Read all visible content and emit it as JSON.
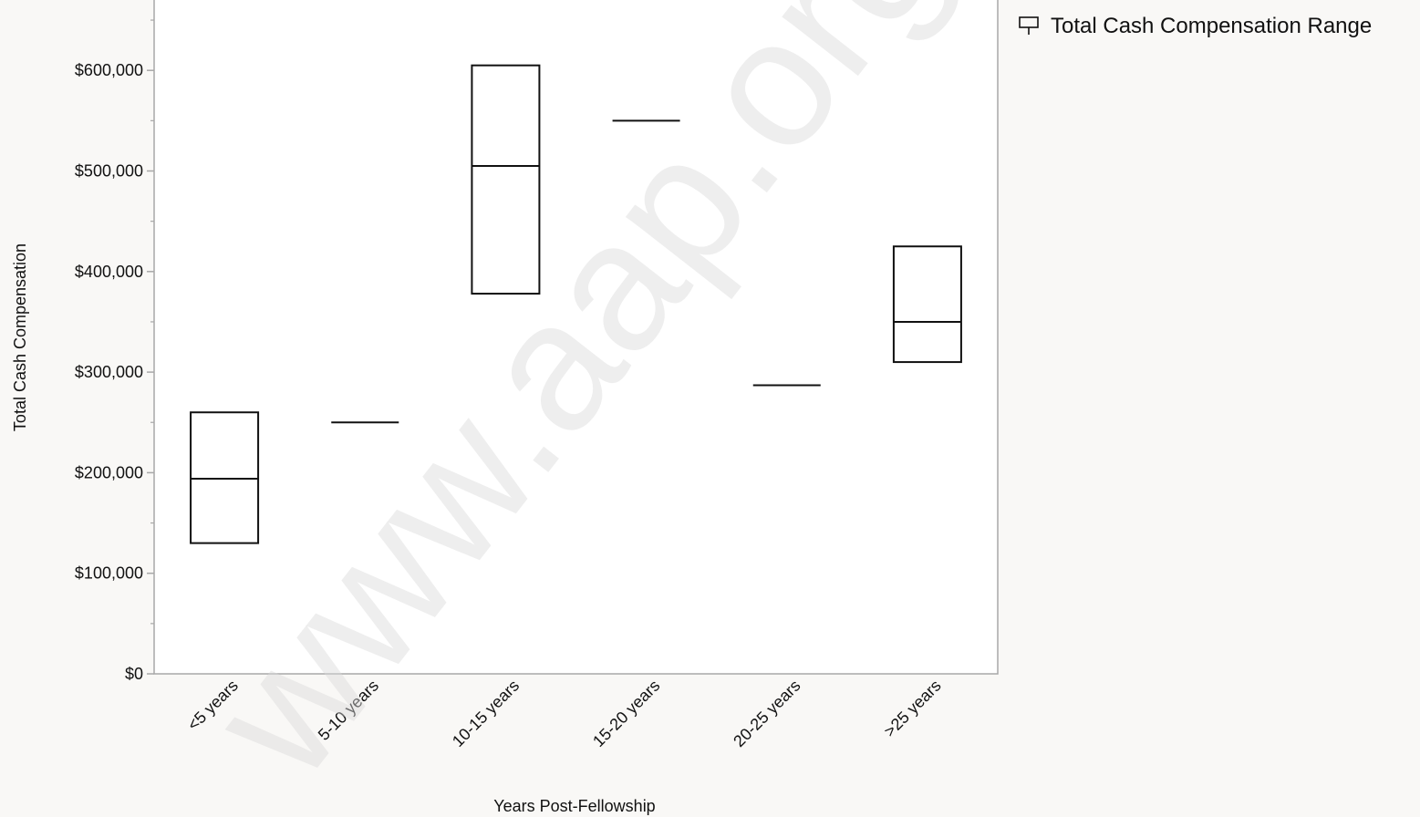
{
  "chart_data": {
    "type": "box-range",
    "xlabel": "Years Post-Fellowship",
    "ylabel": "Total Cash Compensation",
    "categories": [
      "<5 years",
      "5-10 years",
      "10-15 years",
      "15-20 years",
      "20-25 years",
      ">25 years"
    ],
    "series": [
      {
        "name": "Total Cash Compensation Range",
        "ranges": [
          {
            "category": "<5 years",
            "low": 130000,
            "mid": 194000,
            "high": 260000
          },
          {
            "category": "5-10 years",
            "low": 250000,
            "mid": 250000,
            "high": 250000
          },
          {
            "category": "10-15 years",
            "low": 378000,
            "mid": 505000,
            "high": 605000
          },
          {
            "category": "15-20 years",
            "low": 550000,
            "mid": 550000,
            "high": 550000
          },
          {
            "category": "20-25 years",
            "low": 287000,
            "mid": 287000,
            "high": 287000
          },
          {
            "category": ">25 years",
            "low": 310000,
            "mid": 350000,
            "high": 425000
          }
        ]
      }
    ],
    "ylim": [
      0,
      670000
    ],
    "y_major_ticks": [
      0,
      100000,
      200000,
      300000,
      400000,
      500000,
      600000
    ],
    "y_tick_labels": [
      "$0",
      "$100,000",
      "$200,000",
      "$300,000",
      "$400,000",
      "$500,000",
      "$600,000"
    ],
    "y_minor_ticks": [
      50000,
      150000,
      250000,
      350000,
      450000,
      550000,
      650000
    ],
    "grid": false,
    "legend_position": "top-right",
    "legend_label": "Total Cash Compensation Range"
  },
  "watermark": "www.aap.org/DOC..."
}
